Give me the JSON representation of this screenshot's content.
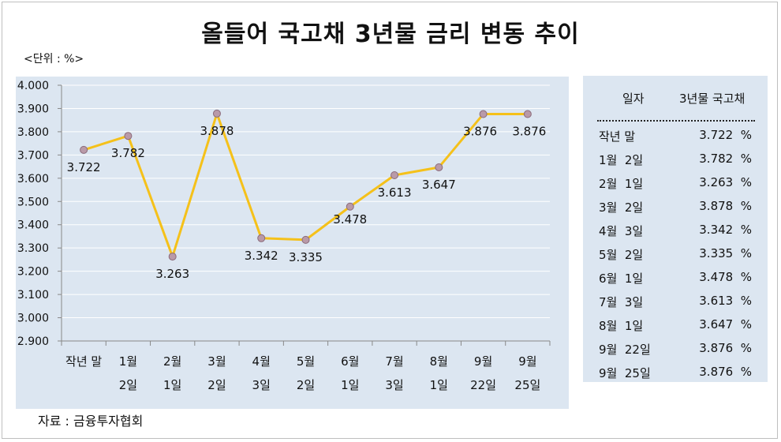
{
  "title": "올들어 국고채 3년물 금리 변동 추이",
  "unit_label": "<단위 : %>",
  "source": "자료 : 금융투자협회",
  "colors": {
    "panel": "#dce6f1",
    "line": "#f5c11a",
    "marker": "#b99aa8",
    "grid": "#ffffff"
  },
  "table": {
    "header_date": "일자",
    "header_value": "3년물 국고채",
    "rows": [
      {
        "date": "작년 말",
        "value": "3.722  %"
      },
      {
        "date": "1월  2일",
        "value": "3.782  %"
      },
      {
        "date": "2월  1일",
        "value": "3.263  %"
      },
      {
        "date": "3월  2일",
        "value": "3.878  %"
      },
      {
        "date": "4월  3일",
        "value": "3.342  %"
      },
      {
        "date": "5월  2일",
        "value": "3.335  %"
      },
      {
        "date": "6월  1일",
        "value": "3.478  %"
      },
      {
        "date": "7월  3일",
        "value": "3.613  %"
      },
      {
        "date": "8월  1일",
        "value": "3.647  %"
      },
      {
        "date": "9월  22일",
        "value": "3.876  %"
      },
      {
        "date": "9월  25일",
        "value": "3.876  %"
      }
    ]
  },
  "chart_data": {
    "type": "line",
    "title": "올들어 국고채 3년물 금리 변동 추이",
    "categories": [
      [
        "작년 말"
      ],
      [
        "1월",
        "2일"
      ],
      [
        "2월",
        "1일"
      ],
      [
        "3월",
        "2일"
      ],
      [
        "4월",
        "3일"
      ],
      [
        "5월",
        "2일"
      ],
      [
        "6월",
        "1일"
      ],
      [
        "7월",
        "3일"
      ],
      [
        "8월",
        "1일"
      ],
      [
        "9월",
        "22일"
      ],
      [
        "9월",
        "25일"
      ]
    ],
    "values": [
      3.722,
      3.782,
      3.263,
      3.878,
      3.342,
      3.335,
      3.478,
      3.613,
      3.647,
      3.876,
      3.876
    ],
    "value_labels": [
      "3.722",
      "3.782",
      "3.263",
      "3.878",
      "3.342",
      "3.335",
      "3.478",
      "3.613",
      "3.647",
      "3.876",
      "3.876"
    ],
    "label_position": [
      "below",
      "below",
      "below",
      "below",
      "below",
      "below",
      "above",
      "below",
      "below",
      "above",
      "above"
    ],
    "ylim": [
      2.9,
      4.0
    ],
    "yticks": [
      "4.000",
      "3.900",
      "3.800",
      "3.700",
      "3.600",
      "3.500",
      "3.400",
      "3.300",
      "3.200",
      "3.100",
      "3.000",
      "2.900"
    ],
    "grid": true,
    "legend": "none"
  }
}
